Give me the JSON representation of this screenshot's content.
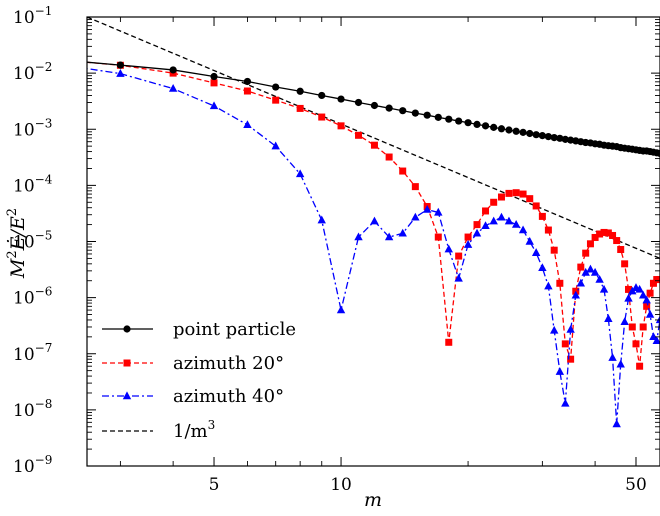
{
  "chart_data": {
    "type": "line",
    "xlabel": "m",
    "ylabel_parts": {
      "main": "M",
      "sup1": "2",
      "mid": "Ė/E",
      "sup2": "2"
    },
    "xscale": "log",
    "yscale": "log",
    "xlim": [
      2.5,
      57
    ],
    "ylim": [
      1e-09,
      0.1
    ],
    "x_major_ticks": [
      5,
      10,
      50
    ],
    "x_major_tick_labels": [
      "5",
      "10",
      "50"
    ],
    "y_major_ticks": [
      {
        "value": 1e-09,
        "base": "10",
        "exp": "−9"
      },
      {
        "value": 1e-08,
        "base": "10",
        "exp": "−8"
      },
      {
        "value": 1e-07,
        "base": "10",
        "exp": "−7"
      },
      {
        "value": 1e-06,
        "base": "10",
        "exp": "−6"
      },
      {
        "value": 1e-05,
        "base": "10",
        "exp": "−5"
      },
      {
        "value": 0.0001,
        "base": "10",
        "exp": "−4"
      },
      {
        "value": 0.001,
        "base": "10",
        "exp": "−3"
      },
      {
        "value": 0.01,
        "base": "10",
        "exp": "−2"
      },
      {
        "value": 0.1,
        "base": "10",
        "exp": "−1"
      }
    ],
    "grid": false,
    "legend_position": "bottom-left",
    "series": [
      {
        "name": "point particle",
        "color": "#000000",
        "marker": "circle",
        "linestyle": "solid",
        "x": [
          2,
          3,
          4,
          5,
          6,
          7,
          8,
          9,
          10,
          11,
          12,
          13,
          14,
          15,
          16,
          17,
          18,
          19,
          20,
          21,
          22,
          23,
          24,
          25,
          26,
          27,
          28,
          29,
          30,
          31,
          32,
          33,
          34,
          35,
          36,
          37,
          38,
          39,
          40,
          41,
          42,
          43,
          44,
          45,
          46,
          47,
          48,
          49,
          50,
          51,
          52,
          53,
          54,
          55,
          56,
          57
        ],
        "y": [
          0.0181,
          0.0139,
          0.0114,
          0.0087,
          0.0071,
          0.00565,
          0.00475,
          0.004,
          0.00345,
          0.003,
          0.00265,
          0.00238,
          0.00214,
          0.00194,
          0.00178,
          0.00163,
          0.00151,
          0.0014,
          0.00131,
          0.00122,
          0.00115,
          0.00108,
          0.00102,
          0.00097,
          0.00092,
          0.00088,
          0.00084,
          0.0008,
          0.00077,
          0.00074,
          0.00071,
          0.00069,
          0.00066,
          0.00064,
          0.00062,
          0.0006,
          0.00058,
          0.00057,
          0.00055,
          0.00054,
          0.00052,
          0.00051,
          0.0005,
          0.00049,
          0.00047,
          0.00046,
          0.00045,
          0.00044,
          0.00043,
          0.00042,
          0.00041,
          0.00041,
          0.0004,
          0.00039,
          0.00038,
          0.00037
        ]
      },
      {
        "name": "azimuth 20°",
        "color": "#ff0000",
        "marker": "square",
        "linestyle": "dashed",
        "x": [
          2,
          3,
          4,
          5,
          6,
          7,
          8,
          9,
          10,
          11,
          12,
          13,
          14,
          15,
          16,
          17,
          18,
          19,
          20,
          21,
          22,
          23,
          24,
          25,
          26,
          27,
          28,
          29,
          30,
          31,
          32,
          33,
          34,
          35,
          36,
          37,
          38,
          39,
          40,
          41,
          42,
          43,
          44,
          45,
          46,
          47,
          48,
          49,
          50,
          51,
          52,
          53,
          54,
          55,
          56,
          57
        ],
        "y": [
          0.0181,
          0.0138,
          0.01,
          0.0067,
          0.0048,
          0.0033,
          0.00235,
          0.00165,
          0.00115,
          0.00078,
          0.00052,
          0.00032,
          0.00018,
          9.5e-05,
          4.2e-05,
          1.2e-05,
          1.6e-07,
          5.5e-06,
          1.2e-05,
          2e-05,
          3.5e-05,
          5e-05,
          6.2e-05,
          7.2e-05,
          7.4e-05,
          7e-05,
          5.8e-05,
          4.3e-05,
          2.8e-05,
          1.6e-05,
          7e-06,
          1.8e-06,
          1.5e-07,
          8e-08,
          1.3e-06,
          3.5e-06,
          6.2e-06,
          9.1e-06,
          1.18e-05,
          1.36e-05,
          1.45e-05,
          1.42e-05,
          1.28e-05,
          1.04e-05,
          7.2e-06,
          4e-06,
          1.4e-06,
          3e-07,
          1.5e-07,
          6e-08,
          3e-07,
          7e-07,
          1.2e-06,
          1.8e-06,
          2.1e-06,
          2.1e-06
        ]
      },
      {
        "name": "azimuth 40°",
        "color": "#0000ff",
        "marker": "triangle",
        "linestyle": "dashdot",
        "x": [
          2,
          3,
          4,
          5,
          6,
          7,
          8,
          9,
          10,
          11,
          12,
          13,
          14,
          15,
          16,
          17,
          18,
          19,
          20,
          21,
          22,
          23,
          24,
          25,
          26,
          27,
          28,
          29,
          30,
          31,
          32,
          33,
          34,
          35,
          36,
          37,
          38,
          39,
          40,
          41,
          42,
          43,
          44,
          45,
          46,
          47,
          48,
          49,
          50,
          51,
          52,
          53,
          54,
          55,
          56,
          57
        ],
        "y": [
          0.0155,
          0.0098,
          0.0053,
          0.0026,
          0.0012,
          0.0005,
          0.00016,
          2.4e-05,
          6e-07,
          1.2e-05,
          2.3e-05,
          1.2e-05,
          1.4e-05,
          2.7e-05,
          3.7e-05,
          3.3e-05,
          7.3e-06,
          2.2e-06,
          8.8e-06,
          1.4e-05,
          1.9e-05,
          2.3e-05,
          2.7e-05,
          2.3e-05,
          2e-05,
          1.6e-05,
          1e-05,
          6.3e-06,
          3.4e-06,
          1.6e-06,
          2.6e-07,
          4.8e-08,
          1.3e-08,
          2.7e-07,
          1.1e-06,
          1.8e-06,
          2.8e-06,
          3.2e-06,
          2.8e-06,
          2.1e-06,
          1.4e-06,
          4.2e-07,
          8.5e-08,
          5.6e-09,
          6.5e-08,
          3.7e-07,
          9.7e-07,
          1.3e-06,
          1.5e-06,
          1.4e-06,
          1.1e-06,
          9e-07,
          5e-07,
          2e-07,
          1.7e-07,
          4e-07
        ]
      },
      {
        "name": "1/m³",
        "name_parts": {
          "pre": "1/m",
          "sup": "3"
        },
        "color": "#000000",
        "marker": "none",
        "linestyle": "dashed",
        "x": [
          2.5,
          57
        ],
        "y": [
          0.1,
          5e-06
        ]
      }
    ]
  }
}
